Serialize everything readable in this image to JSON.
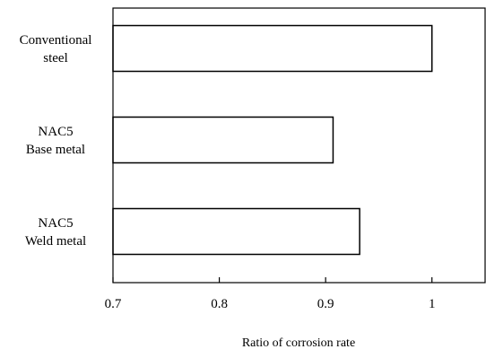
{
  "chart_data": {
    "type": "bar",
    "orientation": "horizontal",
    "categories": [
      [
        "Conventional",
        "steel"
      ],
      [
        "NAC5",
        "Base metal"
      ],
      [
        "NAC5",
        "Weld metal"
      ]
    ],
    "values": [
      1.0,
      0.907,
      0.932
    ],
    "xlabel": "Ratio of corrosion rate",
    "xlim": [
      0.7,
      1.05
    ],
    "xticks": [
      0.7,
      0.8,
      0.9,
      1
    ],
    "xtick_labels": [
      "0.7",
      "0.8",
      "0.9",
      "1"
    ],
    "grid": false,
    "bar_fill": "#ffffff",
    "bar_stroke": "#000000"
  }
}
